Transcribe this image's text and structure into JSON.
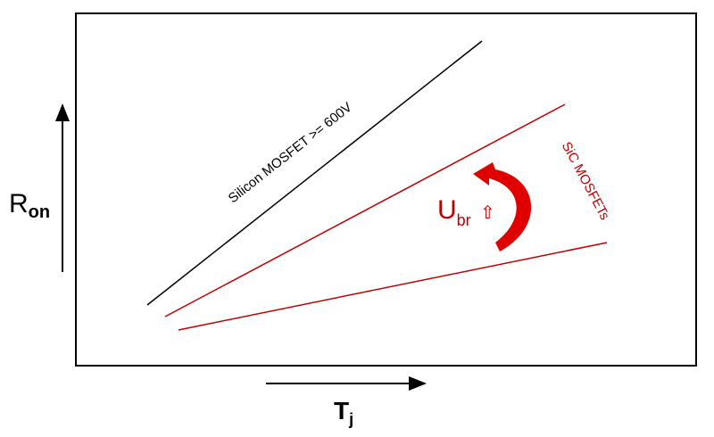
{
  "axes": {
    "y_label": "R",
    "y_sub": "on",
    "x_label": "T",
    "x_sub": "j"
  },
  "lines": {
    "silicon_label": "Silicon MOSFET >= 600V",
    "sic_label": "SiC MOSFETs"
  },
  "annotation": {
    "label": "U",
    "sub": "br",
    "up_symbol": "⇧"
  },
  "colors": {
    "silicon": "#000000",
    "sic": "#c00000",
    "arrow": "#e00000"
  }
}
